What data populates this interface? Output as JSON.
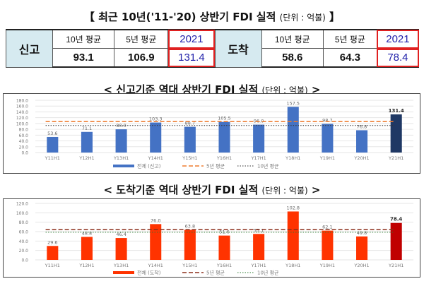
{
  "header": {
    "title_main": "【 최근 10년('11-'20) 상반기 FDI 실적",
    "title_unit": "(단위 : 억불)",
    "title_end": "】"
  },
  "summary_table": {
    "reported": {
      "label": "신고",
      "cols": [
        {
          "header": "10년 평균",
          "value": "93.1"
        },
        {
          "header": "5년 평균",
          "value": "106.9"
        },
        {
          "header": "2021",
          "value": "131.4"
        }
      ]
    },
    "arrived": {
      "label": "도착",
      "cols": [
        {
          "header": "10년 평균",
          "value": "58.6"
        },
        {
          "header": "5년 평균",
          "value": "64.3"
        },
        {
          "header": "2021",
          "value": "78.4"
        }
      ]
    }
  },
  "chart1_title": {
    "main": "< 신고기준 역대 상반기 FDI 실적",
    "unit": "(단위 : 억불)",
    "end": ">"
  },
  "chart2_title": {
    "main": "< 도착기준 역대 상반기 FDI 실적",
    "unit": "(단위 : 억불)",
    "end": ">"
  },
  "chart_data": [
    {
      "type": "bar",
      "title": "신고기준 역대 상반기 FDI 실적 (단위 : 억불)",
      "categories": [
        "Y11H1",
        "Y12H1",
        "Y13H1",
        "Y14H1",
        "Y15H1",
        "Y16H1",
        "Y17H1",
        "Y18H1",
        "Y19H1",
        "Y20H1",
        "Y21H1"
      ],
      "series": [
        {
          "name": "전체 (신고)",
          "values": [
            53.6,
            71.1,
            80.0,
            103.3,
            88.7,
            105.5,
            96.0,
            157.5,
            98.7,
            76.8,
            131.4
          ],
          "color": "#4472c4",
          "highlight_color": "#1f3864"
        },
        {
          "name": "5년 평균",
          "type": "line-dashed",
          "value": 106.9,
          "color": "#ed7d31"
        },
        {
          "name": "10년 평균",
          "type": "line-dotted",
          "value": 93.1,
          "color": "#333333"
        }
      ],
      "labels": [
        "53.6",
        "71.1",
        "80.0",
        "103.3",
        "88.7",
        "105.5",
        "96.0",
        "157.5",
        "98.7",
        "76.8",
        "131.4"
      ],
      "yticks": [
        "0.0",
        "20.0",
        "40.0",
        "60.0",
        "80.0",
        "100.0",
        "120.0",
        "140.0",
        "160.0",
        "180.0"
      ],
      "ylim": [
        0,
        180
      ],
      "grid": true,
      "legend_position": "bottom"
    },
    {
      "type": "bar",
      "title": "도착기준 역대 상반기 FDI 실적 (단위 : 억불)",
      "categories": [
        "Y11H1",
        "Y12H1",
        "Y13H1",
        "Y14H1",
        "Y15H1",
        "Y16H1",
        "Y17H1",
        "Y18H1",
        "Y19H1",
        "Y20H1",
        "Y21H1"
      ],
      "series": [
        {
          "name": "전체 (도착)",
          "values": [
            29.6,
            48.8,
            46.4,
            76.0,
            63.8,
            51.6,
            55.1,
            102.8,
            62.1,
            49.8,
            78.4
          ],
          "color": "#ff3300",
          "highlight_color": "#c00000"
        },
        {
          "name": "5년 평균",
          "type": "line-dashed",
          "value": 64.3,
          "color": "#8b2e1a"
        },
        {
          "name": "10년 평균",
          "type": "line-dotted",
          "value": 58.6,
          "color": "#2e7d32"
        }
      ],
      "labels": [
        "29.6",
        "48.8",
        "46.4",
        "76.0",
        "63.8",
        "51.6",
        "55.1",
        "102.8",
        "62.1",
        "49.8",
        "78.4"
      ],
      "yticks": [
        "0.0",
        "20.0",
        "40.0",
        "60.0",
        "80.0",
        "100.0",
        "120.0"
      ],
      "ylim": [
        0,
        120
      ],
      "grid": true,
      "legend_position": "bottom"
    }
  ]
}
